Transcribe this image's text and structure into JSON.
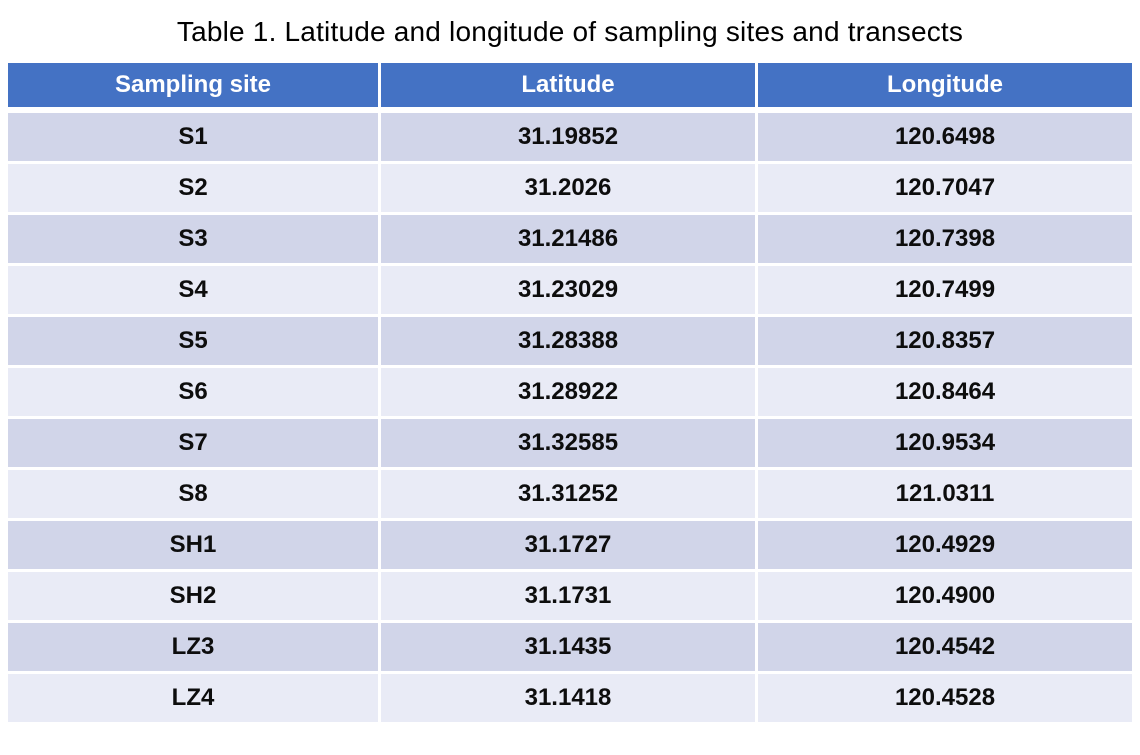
{
  "title": "Table 1. Latitude and longitude of sampling sites and transects",
  "table": {
    "columns": [
      "Sampling site",
      "Latitude",
      "Longitude"
    ],
    "rows": [
      {
        "site": "S1",
        "lat": "31.19852",
        "lon": "120.6498"
      },
      {
        "site": "S2",
        "lat": "31.2026",
        "lon": "120.7047"
      },
      {
        "site": "S3",
        "lat": "31.21486",
        "lon": "120.7398"
      },
      {
        "site": "S4",
        "lat": "31.23029",
        "lon": "120.7499"
      },
      {
        "site": "S5",
        "lat": "31.28388",
        "lon": "120.8357"
      },
      {
        "site": "S6",
        "lat": "31.28922",
        "lon": "120.8464"
      },
      {
        "site": "S7",
        "lat": "31.32585",
        "lon": "120.9534"
      },
      {
        "site": "S8",
        "lat": "31.31252",
        "lon": "121.0311"
      },
      {
        "site": "SH1",
        "lat": "31.1727",
        "lon": "120.4929"
      },
      {
        "site": "SH2",
        "lat": "31.1731",
        "lon": "120.4900"
      },
      {
        "site": "LZ3",
        "lat": "31.1435",
        "lon": "120.4542"
      },
      {
        "site": "LZ4",
        "lat": "31.1418",
        "lon": "120.4528"
      }
    ]
  },
  "colors": {
    "header_bg": "#4472C4",
    "header_text": "#FFFFFF",
    "row_dark": "#D1D5E9",
    "row_light": "#E9EBF6",
    "body_text": "#0D0D0D"
  }
}
